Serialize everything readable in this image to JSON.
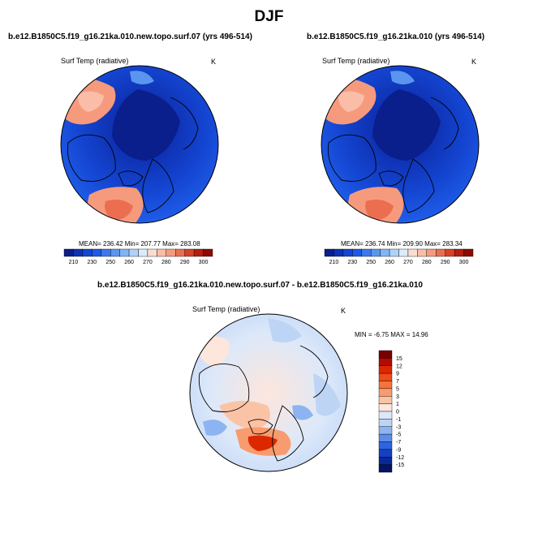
{
  "page_title": "DJF",
  "chart_data": [
    {
      "type": "heatmap",
      "projection": "north-polar-stereographic",
      "title": "b.e12.B1850C5.f19_g16.21ka.010.new.topo.surf.07 (yrs 496-514)",
      "variable": "Surf Temp (radiative)",
      "units": "K",
      "stats": {
        "mean": 236.42,
        "min": 207.77,
        "max": 283.08
      },
      "stats_text": "MEAN= 236.42  Min= 207.77  Max= 283.08",
      "colorbar": {
        "orientation": "horizontal",
        "levels": [
          210,
          220,
          230,
          240,
          250,
          255,
          260,
          265,
          270,
          275,
          280,
          285,
          290,
          295,
          300
        ],
        "tick_labels": [
          "210",
          "230",
          "250",
          "260",
          "270",
          "280",
          "290",
          "300"
        ],
        "colors": [
          "#0a1e8c",
          "#0f32b4",
          "#1446d2",
          "#1e5ae6",
          "#3c78ee",
          "#5a96f0",
          "#82b4f5",
          "#afd2fa",
          "#dcebfc",
          "#fcdcd0",
          "#fabea8",
          "#f69a7e",
          "#ec6e50",
          "#d84028",
          "#b41e10",
          "#8c0a00"
        ]
      }
    },
    {
      "type": "heatmap",
      "projection": "north-polar-stereographic",
      "title": "b.e12.B1850C5.f19_g16.21ka.010 (yrs 496-514)",
      "variable": "Surf Temp (radiative)",
      "units": "K",
      "stats": {
        "mean": 236.74,
        "min": 209.9,
        "max": 283.34
      },
      "stats_text": "MEAN= 236.74  Min= 209.90  Max= 283.34",
      "colorbar": {
        "orientation": "horizontal",
        "levels": [
          210,
          220,
          230,
          240,
          250,
          255,
          260,
          265,
          270,
          275,
          280,
          285,
          290,
          295,
          300
        ],
        "tick_labels": [
          "210",
          "230",
          "250",
          "260",
          "270",
          "280",
          "290",
          "300"
        ],
        "colors": [
          "#0a1e8c",
          "#0f32b4",
          "#1446d2",
          "#1e5ae6",
          "#3c78ee",
          "#5a96f0",
          "#82b4f5",
          "#afd2fa",
          "#dcebfc",
          "#fcdcd0",
          "#fabea8",
          "#f69a7e",
          "#ec6e50",
          "#d84028",
          "#b41e10",
          "#8c0a00"
        ]
      }
    },
    {
      "type": "heatmap",
      "projection": "north-polar-stereographic",
      "title": "b.e12.B1850C5.f19_g16.21ka.010.new.topo.surf.07 - b.e12.B1850C5.f19_g16.21ka.010",
      "variable": "Surf Temp (radiative)",
      "units": "K",
      "stats": {
        "min": -6.75,
        "max": 14.96
      },
      "stats_text": "MIN =  -6.75 MAX =  14.96",
      "colorbar": {
        "orientation": "vertical",
        "levels": [
          15,
          12,
          9,
          7,
          5,
          3,
          1,
          0,
          -1,
          -3,
          -5,
          -7,
          -9,
          -12,
          -15
        ],
        "tick_labels": [
          "15",
          "12",
          "9",
          "7",
          "5",
          "3",
          "1",
          "0",
          "-1",
          "-3",
          "-5",
          "-7",
          "-9",
          "-12",
          "-15"
        ],
        "colors": [
          "#780000",
          "#b40a00",
          "#dc2800",
          "#f04b19",
          "#f5733c",
          "#f89b6e",
          "#fbc3a5",
          "#fde6dc",
          "#dce8fa",
          "#bed4f5",
          "#8cb4f0",
          "#5a8ceb",
          "#2d64e1",
          "#1441c3",
          "#0a2896",
          "#051464"
        ]
      }
    }
  ]
}
